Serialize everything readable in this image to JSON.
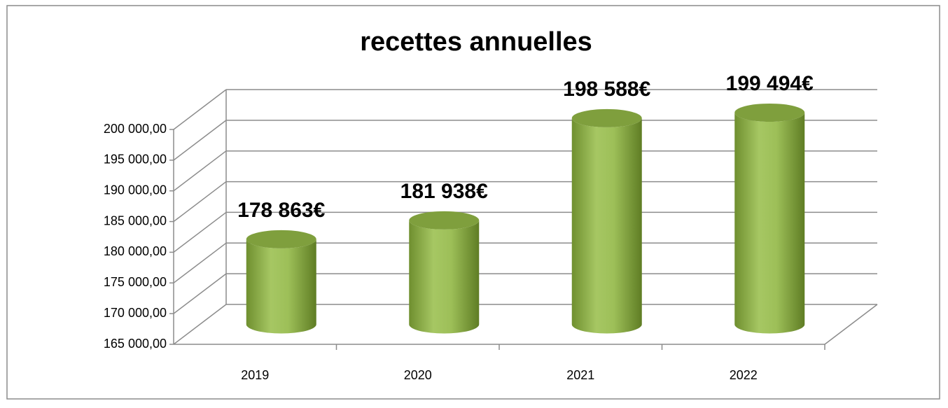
{
  "chart_data": {
    "type": "bar3d",
    "title": "recettes annuelles",
    "categories": [
      "2019",
      "2020",
      "2021",
      "2022"
    ],
    "values": [
      178863,
      181938,
      198588,
      199494
    ],
    "value_labels": [
      "178 863€",
      "181 938€",
      "198 588€",
      "199 494€"
    ],
    "color": "#9bbb59",
    "ylim": [
      165000,
      200000
    ],
    "yticks": [
      {
        "value": 165000,
        "label": "165 000,00"
      },
      {
        "value": 170000,
        "label": "170 000,00"
      },
      {
        "value": 175000,
        "label": "175 000,00"
      },
      {
        "value": 180000,
        "label": "180 000,00"
      },
      {
        "value": 185000,
        "label": "185 000,00"
      },
      {
        "value": 190000,
        "label": "190 000,00"
      },
      {
        "value": 195000,
        "label": "195 000,00"
      },
      {
        "value": 200000,
        "label": "200 000,00"
      }
    ],
    "grid": true
  }
}
